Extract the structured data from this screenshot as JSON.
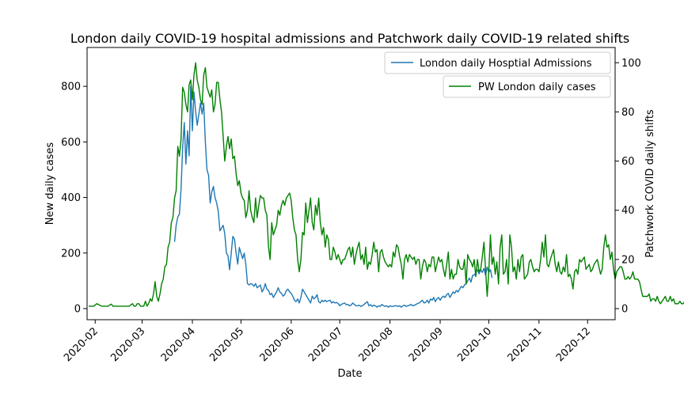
{
  "chart_data": {
    "type": "line",
    "title": "London daily COVID-19 hospital admissions and Patchwork daily COVID-19 related shifts",
    "xlabel": "Date",
    "ylabel_left": "New daily cases",
    "ylabel_right": "Patchwork COVID daily shifts",
    "x_ticks": [
      "2020-02",
      "2020-03",
      "2020-04",
      "2020-05",
      "2020-06",
      "2020-07",
      "2020-08",
      "2020-09",
      "2020-10",
      "2020-11",
      "2020-12"
    ],
    "y_left_ticks": [
      "0",
      "200",
      "400",
      "600",
      "800"
    ],
    "y_right_ticks": [
      "0",
      "20",
      "40",
      "60",
      "80",
      "100"
    ],
    "ylim_left": [
      -40,
      940
    ],
    "ylim_right": [
      -4.5,
      106.2
    ],
    "xlim_days": [
      -5,
      321
    ],
    "series": [
      {
        "name": "London daily Hosptial Admissions",
        "axis": "left",
        "color": "#1f77b4",
        "start_day": 49,
        "values": [
          240,
          300,
          330,
          340,
          430,
          580,
          670,
          520,
          640,
          550,
          800,
          640,
          780,
          710,
          660,
          700,
          740,
          700,
          740,
          600,
          500,
          480,
          380,
          420,
          440,
          400,
          380,
          350,
          280,
          290,
          300,
          270,
          200,
          190,
          140,
          200,
          260,
          250,
          200,
          160,
          220,
          200,
          180,
          200,
          160,
          90,
          85,
          90,
          88,
          80,
          90,
          75,
          80,
          85,
          60,
          70,
          90,
          70,
          65,
          50,
          55,
          40,
          50,
          60,
          75,
          60,
          55,
          45,
          50,
          65,
          70,
          60,
          55,
          45,
          30,
          25,
          35,
          20,
          40,
          70,
          60,
          50,
          40,
          30,
          20,
          45,
          35,
          40,
          50,
          25,
          20,
          30,
          25,
          30,
          25,
          28,
          30,
          20,
          25,
          20,
          22,
          18,
          10,
          15,
          18,
          20,
          14,
          15,
          10,
          12,
          20,
          15,
          10,
          10,
          12,
          8,
          10,
          15,
          20,
          25,
          10,
          14,
          8,
          12,
          10,
          5,
          10,
          8,
          15,
          10,
          8,
          10,
          5,
          10,
          8,
          8,
          10,
          10,
          8,
          10,
          5,
          10,
          12,
          8,
          10,
          12,
          15,
          10,
          12,
          15,
          18,
          20,
          25,
          30,
          20,
          22,
          30,
          20,
          35,
          30,
          40,
          25,
          35,
          40,
          30,
          40,
          45,
          40,
          50,
          55,
          40,
          50,
          60,
          55,
          65,
          60,
          70,
          80,
          75,
          85,
          90,
          100,
          110,
          95,
          120,
          120,
          130,
          140,
          125,
          140,
          130,
          145,
          120,
          150,
          130,
          140,
          110
        ]
      },
      {
        "name": "PW London daily cases",
        "axis": "right",
        "color": "#008000",
        "start_day": -4,
        "values": [
          1,
          1,
          1,
          1,
          1.5,
          2,
          1.7,
          1.3,
          1,
          1,
          1,
          1,
          1,
          1.5,
          1.8,
          1,
          1,
          1,
          1,
          1,
          1,
          1,
          1,
          1,
          1,
          1,
          1.5,
          2,
          1,
          1,
          2,
          2,
          1,
          1,
          1,
          3,
          1,
          2,
          4,
          3,
          6,
          11,
          5,
          3,
          6,
          10,
          12,
          17,
          18,
          25,
          27,
          35,
          37,
          45,
          48,
          66,
          62,
          69,
          90,
          88,
          83,
          80,
          91,
          93,
          85,
          95,
          100,
          93,
          90,
          85,
          83,
          95,
          98,
          90,
          88,
          86,
          89,
          80,
          83,
          92,
          92,
          85,
          80,
          70,
          60,
          66,
          70,
          65,
          69,
          61,
          62,
          55,
          50,
          52,
          47,
          45,
          44,
          37,
          40,
          48,
          40,
          37,
          35,
          45,
          37,
          42,
          46,
          45,
          45,
          40,
          38,
          25,
          20,
          35,
          30,
          32,
          34,
          40,
          38,
          42,
          44,
          42,
          45,
          46,
          47,
          44,
          37,
          32,
          30,
          20,
          15,
          20,
          31,
          30,
          43,
          35,
          40,
          45,
          35,
          32,
          42,
          38,
          45,
          35,
          30,
          33,
          25,
          30,
          28,
          20,
          20,
          25,
          23,
          20,
          22,
          20,
          18,
          20,
          20,
          22,
          24,
          25,
          21,
          25,
          18,
          22,
          25,
          27,
          20,
          22,
          18,
          25,
          16,
          19,
          18,
          22,
          27,
          23,
          24,
          15,
          23,
          24,
          21,
          19,
          18,
          17,
          18,
          17,
          23,
          21,
          26,
          25,
          21,
          18,
          12,
          20,
          22,
          19,
          22,
          21,
          20,
          21,
          18,
          20,
          20,
          12,
          17,
          20,
          19,
          15,
          18,
          17,
          21,
          21,
          15,
          18,
          21,
          19,
          20,
          16,
          13,
          18,
          23,
          12,
          16,
          12,
          14,
          14,
          20,
          17,
          16,
          16,
          20,
          10,
          22,
          20,
          19,
          17,
          20,
          13,
          20,
          15,
          16,
          21,
          27,
          16,
          5,
          15,
          30,
          18,
          21,
          14,
          19,
          10,
          25,
          30,
          14,
          15,
          20,
          10,
          30,
          25,
          15,
          17,
          12,
          20,
          15,
          21,
          22,
          12,
          13,
          14,
          19,
          20,
          17,
          15,
          16,
          16,
          15,
          20,
          27,
          21,
          30,
          18,
          17,
          20,
          22,
          24,
          18,
          15,
          19,
          15,
          14,
          17,
          15,
          22,
          13,
          14,
          12,
          8,
          15,
          16,
          14,
          20,
          19,
          20,
          21,
          16,
          17,
          18,
          15,
          16,
          18,
          19,
          20,
          17,
          14,
          16,
          25,
          30,
          25,
          26,
          20,
          23,
          16,
          12,
          15,
          16,
          17,
          17,
          15,
          12,
          12,
          13,
          12,
          13,
          15,
          12,
          12,
          12,
          11,
          8,
          5,
          5,
          5,
          5,
          6,
          3,
          4,
          4,
          3,
          5,
          3,
          2,
          3,
          4,
          5,
          3,
          3,
          5,
          3,
          4,
          2,
          2,
          2,
          3,
          2,
          2,
          3,
          2,
          2,
          2,
          2,
          3,
          4,
          2,
          2,
          2,
          2,
          2,
          2,
          2,
          2
        ]
      }
    ],
    "legend": [
      "London daily Hosptial Admissions",
      "PW London daily cases"
    ],
    "legend_placement": "top-right"
  }
}
